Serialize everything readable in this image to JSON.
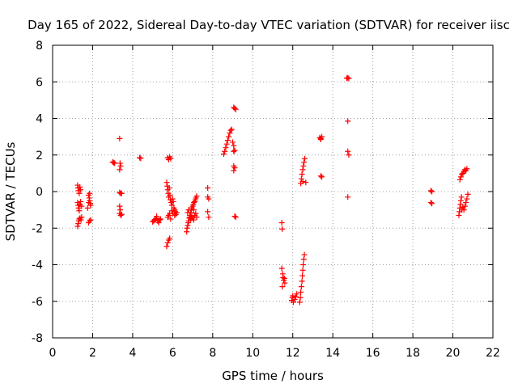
{
  "chart_data": {
    "type": "scatter",
    "title": "Day 165 of 2022, Sidereal Day-to-day VTEC variation (SDTVAR) for receiver iisc",
    "xlabel": "GPS time / hours",
    "ylabel": "SDTVAR / TECUs",
    "xlim": [
      0,
      22
    ],
    "ylim": [
      -8,
      8
    ],
    "xticks": [
      0,
      2,
      4,
      6,
      8,
      10,
      12,
      14,
      16,
      18,
      20,
      22
    ],
    "yticks": [
      -8,
      -6,
      -4,
      -2,
      0,
      2,
      4,
      6,
      8
    ],
    "grid": true,
    "legend": "none",
    "marker": "plus",
    "colors": {
      "series": "#ff0000",
      "grid": "#a0a0a0",
      "axes": "#000000"
    },
    "series": [
      {
        "name": "SDTVAR",
        "points": [
          [
            1.25,
            0.35
          ],
          [
            1.27,
            0.2
          ],
          [
            1.3,
            0.05
          ],
          [
            1.33,
            -0.1
          ],
          [
            1.36,
            0.25
          ],
          [
            1.4,
            0.1
          ],
          [
            1.25,
            -0.6
          ],
          [
            1.28,
            -0.75
          ],
          [
            1.3,
            -0.9
          ],
          [
            1.33,
            -1.05
          ],
          [
            1.36,
            -0.7
          ],
          [
            1.4,
            -0.55
          ],
          [
            1.45,
            -0.8
          ],
          [
            1.25,
            -1.9
          ],
          [
            1.28,
            -1.75
          ],
          [
            1.3,
            -1.6
          ],
          [
            1.33,
            -1.5
          ],
          [
            1.37,
            -1.45
          ],
          [
            1.42,
            -1.55
          ],
          [
            1.45,
            -1.4
          ],
          [
            1.8,
            -0.2
          ],
          [
            1.83,
            -0.35
          ],
          [
            1.85,
            -0.5
          ],
          [
            1.88,
            -0.65
          ],
          [
            1.9,
            -0.75
          ],
          [
            1.85,
            -0.1
          ],
          [
            1.8,
            -1.7
          ],
          [
            1.85,
            -1.6
          ],
          [
            1.9,
            -1.55
          ],
          [
            1.75,
            -0.9
          ],
          [
            1.8,
            -0.6
          ],
          [
            3.0,
            1.62
          ],
          [
            3.05,
            1.58
          ],
          [
            3.1,
            1.55
          ],
          [
            3.35,
            2.9
          ],
          [
            3.37,
            1.55
          ],
          [
            3.4,
            1.4
          ],
          [
            3.35,
            1.2
          ],
          [
            3.35,
            -0.05
          ],
          [
            3.4,
            -0.1
          ],
          [
            3.45,
            -0.1
          ],
          [
            3.35,
            -0.8
          ],
          [
            3.38,
            -1.0
          ],
          [
            3.35,
            -1.2
          ],
          [
            3.4,
            -1.3
          ],
          [
            3.45,
            -1.25
          ],
          [
            4.35,
            1.85
          ],
          [
            4.4,
            1.82
          ],
          [
            5.0,
            -1.65
          ],
          [
            5.05,
            -1.6
          ],
          [
            5.1,
            -1.55
          ],
          [
            5.15,
            -1.5
          ],
          [
            5.2,
            -1.45
          ],
          [
            5.25,
            -1.6
          ],
          [
            5.3,
            -1.7
          ],
          [
            5.35,
            -1.55
          ],
          [
            5.4,
            -1.5
          ],
          [
            5.2,
            -1.35
          ],
          [
            5.7,
            0.5
          ],
          [
            5.73,
            0.3
          ],
          [
            5.75,
            0.1
          ],
          [
            5.78,
            -0.1
          ],
          [
            5.8,
            -0.3
          ],
          [
            5.83,
            0.2
          ],
          [
            5.86,
            -0.2
          ],
          [
            5.88,
            -0.45
          ],
          [
            5.92,
            -0.6
          ],
          [
            5.96,
            -0.75
          ],
          [
            6.0,
            -0.4
          ],
          [
            6.03,
            -0.55
          ],
          [
            6.06,
            -0.9
          ],
          [
            6.1,
            -1.0
          ],
          [
            6.13,
            -1.1
          ],
          [
            6.16,
            -1.25
          ],
          [
            6.2,
            -1.15
          ],
          [
            6.1,
            -1.3
          ],
          [
            6.0,
            -1.2
          ],
          [
            5.95,
            -1.05
          ],
          [
            5.75,
            -1.4
          ],
          [
            5.8,
            -1.3
          ],
          [
            5.85,
            -1.2
          ],
          [
            5.9,
            -1.5
          ],
          [
            5.75,
            1.85
          ],
          [
            5.8,
            1.75
          ],
          [
            5.85,
            1.9
          ],
          [
            5.9,
            1.8
          ],
          [
            5.7,
            -3.0
          ],
          [
            5.75,
            -2.8
          ],
          [
            5.8,
            -2.65
          ],
          [
            5.85,
            -2.55
          ],
          [
            6.7,
            -2.2
          ],
          [
            6.72,
            -2.0
          ],
          [
            6.75,
            -1.85
          ],
          [
            6.78,
            -1.7
          ],
          [
            6.8,
            -1.6
          ],
          [
            6.83,
            -1.45
          ],
          [
            6.86,
            -1.3
          ],
          [
            6.9,
            -1.15
          ],
          [
            6.93,
            -1.0
          ],
          [
            6.96,
            -0.9
          ],
          [
            7.0,
            -0.8
          ],
          [
            7.03,
            -0.7
          ],
          [
            7.06,
            -0.6
          ],
          [
            7.1,
            -0.55
          ],
          [
            7.13,
            -0.45
          ],
          [
            7.16,
            -0.35
          ],
          [
            7.2,
            -0.25
          ],
          [
            6.85,
            -1.4
          ],
          [
            6.9,
            -1.5
          ],
          [
            6.95,
            -1.35
          ],
          [
            7.0,
            -1.45
          ],
          [
            7.05,
            -1.55
          ],
          [
            7.1,
            -1.3
          ],
          [
            7.15,
            -1.2
          ],
          [
            7.2,
            -1.4
          ],
          [
            6.75,
            -1.15
          ],
          [
            6.8,
            -1.0
          ],
          [
            6.95,
            -0.9
          ],
          [
            7.05,
            -1.0
          ],
          [
            7.75,
            0.2
          ],
          [
            7.75,
            -0.3
          ],
          [
            7.8,
            -0.4
          ],
          [
            7.75,
            -1.1
          ],
          [
            7.8,
            -1.4
          ],
          [
            8.55,
            2.05
          ],
          [
            8.6,
            2.2
          ],
          [
            8.65,
            2.4
          ],
          [
            8.7,
            2.6
          ],
          [
            8.75,
            2.8
          ],
          [
            8.8,
            3.0
          ],
          [
            8.85,
            3.2
          ],
          [
            8.9,
            3.35
          ],
          [
            8.95,
            3.4
          ],
          [
            9.05,
            4.6
          ],
          [
            9.1,
            4.55
          ],
          [
            9.15,
            4.5
          ],
          [
            9.0,
            2.7
          ],
          [
            9.05,
            2.5
          ],
          [
            9.1,
            2.25
          ],
          [
            9.05,
            2.2
          ],
          [
            9.05,
            1.4
          ],
          [
            9.1,
            1.3
          ],
          [
            9.05,
            1.15
          ],
          [
            9.1,
            -1.35
          ],
          [
            9.15,
            -1.4
          ],
          [
            11.45,
            -1.7
          ],
          [
            11.47,
            -2.05
          ],
          [
            11.45,
            -4.2
          ],
          [
            11.5,
            -4.5
          ],
          [
            11.52,
            -4.7
          ],
          [
            11.55,
            -4.85
          ],
          [
            11.6,
            -5.0
          ],
          [
            11.48,
            -5.2
          ],
          [
            11.58,
            -4.75
          ],
          [
            11.95,
            -5.95
          ],
          [
            11.98,
            -5.8
          ],
          [
            12.0,
            -5.7
          ],
          [
            12.03,
            -6.05
          ],
          [
            12.1,
            -5.9
          ],
          [
            12.15,
            -5.75
          ],
          [
            12.2,
            -5.6
          ],
          [
            12.35,
            -6.05
          ],
          [
            12.38,
            -5.8
          ],
          [
            12.4,
            -5.5
          ],
          [
            12.43,
            -5.2
          ],
          [
            12.46,
            -4.9
          ],
          [
            12.48,
            -4.6
          ],
          [
            12.5,
            -4.3
          ],
          [
            12.52,
            -4.0
          ],
          [
            12.55,
            -3.7
          ],
          [
            12.58,
            -3.45
          ],
          [
            12.4,
            0.45
          ],
          [
            12.43,
            0.7
          ],
          [
            12.46,
            0.95
          ],
          [
            12.5,
            1.2
          ],
          [
            12.53,
            1.4
          ],
          [
            12.56,
            1.6
          ],
          [
            12.6,
            1.8
          ],
          [
            12.65,
            0.5
          ],
          [
            12.5,
            0.55
          ],
          [
            13.35,
            2.95
          ],
          [
            13.4,
            2.9
          ],
          [
            13.45,
            3.0
          ],
          [
            13.4,
            2.85
          ],
          [
            13.4,
            0.85
          ],
          [
            13.45,
            0.8
          ],
          [
            14.7,
            6.2
          ],
          [
            14.75,
            6.22
          ],
          [
            14.8,
            6.18
          ],
          [
            14.75,
            3.85
          ],
          [
            14.75,
            2.2
          ],
          [
            14.8,
            2.0
          ],
          [
            14.75,
            -0.3
          ],
          [
            18.9,
            0.05
          ],
          [
            18.95,
            0.0
          ],
          [
            18.95,
            -0.65
          ],
          [
            18.9,
            -0.6
          ],
          [
            20.3,
            -1.3
          ],
          [
            20.33,
            -1.1
          ],
          [
            20.35,
            -0.9
          ],
          [
            20.38,
            -0.7
          ],
          [
            20.4,
            -0.5
          ],
          [
            20.43,
            -0.3
          ],
          [
            20.45,
            -1.0
          ],
          [
            20.5,
            -0.85
          ],
          [
            20.55,
            -1.0
          ],
          [
            20.6,
            -0.8
          ],
          [
            20.65,
            -0.6
          ],
          [
            20.7,
            -0.4
          ],
          [
            20.75,
            -0.15
          ],
          [
            20.35,
            0.65
          ],
          [
            20.4,
            0.8
          ],
          [
            20.45,
            0.95
          ],
          [
            20.5,
            1.0
          ],
          [
            20.55,
            1.1
          ],
          [
            20.6,
            1.2
          ],
          [
            20.65,
            1.15
          ],
          [
            20.7,
            1.25
          ]
        ]
      }
    ]
  }
}
